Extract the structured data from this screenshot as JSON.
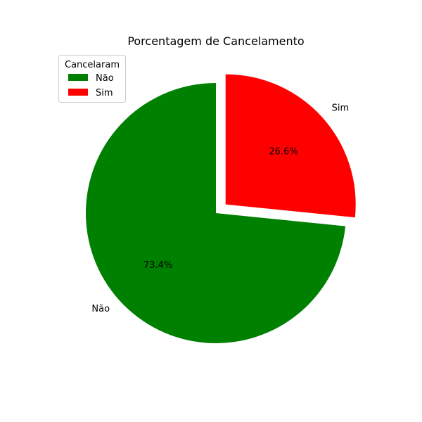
{
  "chart_data": {
    "type": "pie",
    "title": "Porcentagem de Cancelamento",
    "slices": [
      {
        "label": "Não",
        "percent": 73.4,
        "percent_label": "73.4%",
        "color": "#008000",
        "exploded": false
      },
      {
        "label": "Sim",
        "percent": 26.6,
        "percent_label": "26.6%",
        "color": "#ff0000",
        "exploded": true
      }
    ],
    "start_angle_deg": 90,
    "direction": "counterclockwise",
    "legend": {
      "title": "Cancelaram",
      "placement": "upper-left",
      "entries": [
        "Não",
        "Sim"
      ]
    }
  }
}
